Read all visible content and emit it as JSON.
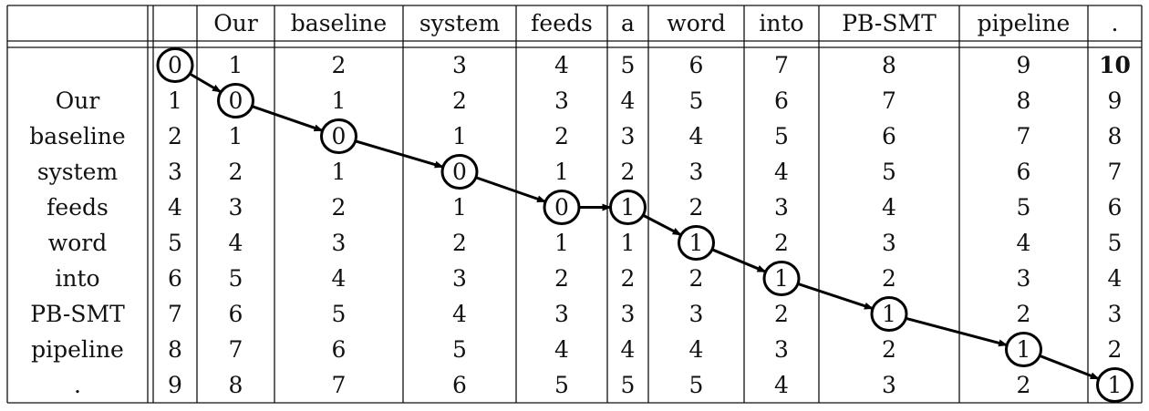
{
  "columns": [
    "",
    "Our",
    "baseline",
    "system",
    "feeds",
    "a",
    "word",
    "into",
    "PB-SMT",
    "pipeline",
    "."
  ],
  "rows": [
    "",
    "Our",
    "baseline",
    "system",
    "feeds",
    "word",
    "into",
    "PB-SMT",
    "pipeline",
    "."
  ],
  "matrix": [
    [
      "0",
      "1",
      "2",
      "3",
      "4",
      "5",
      "6",
      "7",
      "8",
      "9",
      "10"
    ],
    [
      "1",
      "0",
      "1",
      "2",
      "3",
      "4",
      "5",
      "6",
      "7",
      "8",
      "9"
    ],
    [
      "2",
      "1",
      "0",
      "1",
      "2",
      "3",
      "4",
      "5",
      "6",
      "7",
      "8"
    ],
    [
      "3",
      "2",
      "1",
      "0",
      "1",
      "2",
      "3",
      "4",
      "5",
      "6",
      "7"
    ],
    [
      "4",
      "3",
      "2",
      "1",
      "0",
      "1",
      "2",
      "3",
      "4",
      "5",
      "6"
    ],
    [
      "5",
      "4",
      "3",
      "2",
      "1",
      "1",
      "1",
      "2",
      "3",
      "4",
      "5"
    ],
    [
      "6",
      "5",
      "4",
      "3",
      "2",
      "2",
      "2",
      "1",
      "2",
      "3",
      "4"
    ],
    [
      "7",
      "6",
      "5",
      "4",
      "3",
      "3",
      "3",
      "2",
      "1",
      "2",
      "3"
    ],
    [
      "8",
      "7",
      "6",
      "5",
      "4",
      "4",
      "4",
      "3",
      "2",
      "1",
      "2"
    ],
    [
      "9",
      "8",
      "7",
      "6",
      "5",
      "5",
      "5",
      "4",
      "3",
      "2",
      "1"
    ]
  ],
  "bold_cells": [
    [
      0,
      10
    ]
  ],
  "path": [
    [
      0,
      0
    ],
    [
      1,
      1
    ],
    [
      2,
      2
    ],
    [
      3,
      3
    ],
    [
      4,
      4
    ],
    [
      4,
      5
    ],
    [
      5,
      6
    ],
    [
      6,
      7
    ],
    [
      7,
      8
    ],
    [
      8,
      9
    ],
    [
      9,
      10
    ]
  ],
  "colors": {
    "line": "#111111",
    "path": "#000000"
  }
}
